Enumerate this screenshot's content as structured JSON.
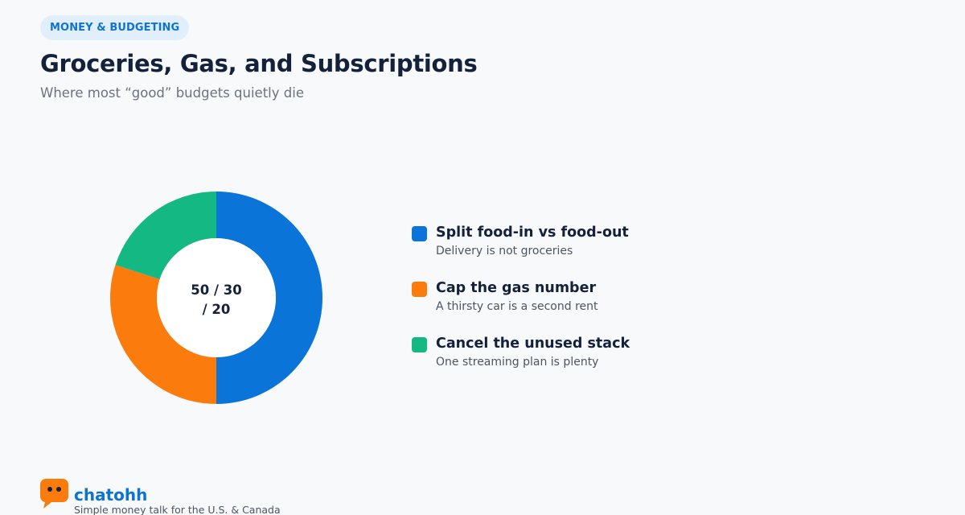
{
  "badge": "MONEY & BUDGETING",
  "title": "Groceries, Gas, and Subscriptions",
  "subtitle": "Where most “good” budgets quietly die",
  "chart_data": {
    "type": "pie",
    "center_label_lines": [
      "50 / 30",
      "/ 20"
    ],
    "values": [
      50,
      30,
      20
    ],
    "colors": [
      "#0a74d9",
      "#fb7c0c",
      "#14b883"
    ],
    "legend_placement": "right"
  },
  "legend": [
    {
      "title": "Split food-in vs food-out",
      "desc": "Delivery is not groceries",
      "color": "#0a74d9"
    },
    {
      "title": "Cap the gas number",
      "desc": "A thirsty car is a second rent",
      "color": "#fb7c0c"
    },
    {
      "title": "Cancel the unused stack",
      "desc": "One streaming plan is plenty",
      "color": "#14b883"
    }
  ],
  "brand": {
    "name": "chatohh",
    "tagline": "Simple money talk for the U.S. & Canada",
    "icon": "chat-bubble-icon",
    "color": "#fb7c0c"
  }
}
